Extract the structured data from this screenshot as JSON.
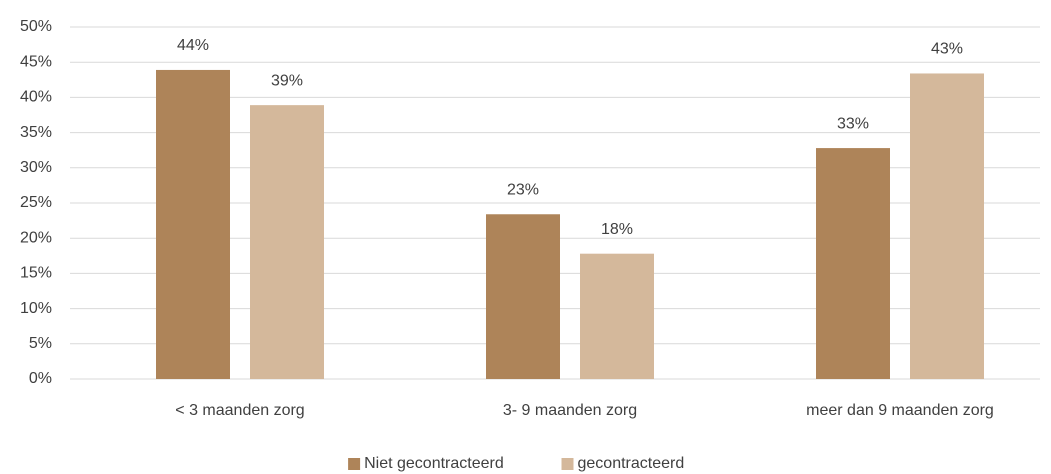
{
  "chart_data": {
    "type": "bar",
    "categories": [
      "< 3 maanden zorg",
      "3- 9 maanden zorg",
      "meer dan 9 maanden zorg"
    ],
    "series": [
      {
        "name": "Niet gecontracteerd",
        "color": "#ae8459",
        "values": [
          43.9,
          23.4,
          32.8
        ],
        "value_labels": [
          "44%",
          "23%",
          "33%"
        ]
      },
      {
        "name": "gecontracteerd",
        "color": "#d4b89b",
        "values": [
          38.9,
          17.8,
          43.4
        ],
        "value_labels": [
          "39%",
          "18%",
          "43%"
        ]
      }
    ],
    "ylim": [
      0,
      50
    ],
    "yticks": [
      {
        "value": 0,
        "label": "0%"
      },
      {
        "value": 5,
        "label": "5%"
      },
      {
        "value": 10,
        "label": "10%"
      },
      {
        "value": 15,
        "label": "15%"
      },
      {
        "value": 20,
        "label": "20%"
      },
      {
        "value": 25,
        "label": "25%"
      },
      {
        "value": 30,
        "label": "30%"
      },
      {
        "value": 35,
        "label": "35%"
      },
      {
        "value": 40,
        "label": "40%"
      },
      {
        "value": 45,
        "label": "45%"
      },
      {
        "value": 50,
        "label": "50%"
      }
    ],
    "grid": true,
    "legend": "bottom"
  }
}
